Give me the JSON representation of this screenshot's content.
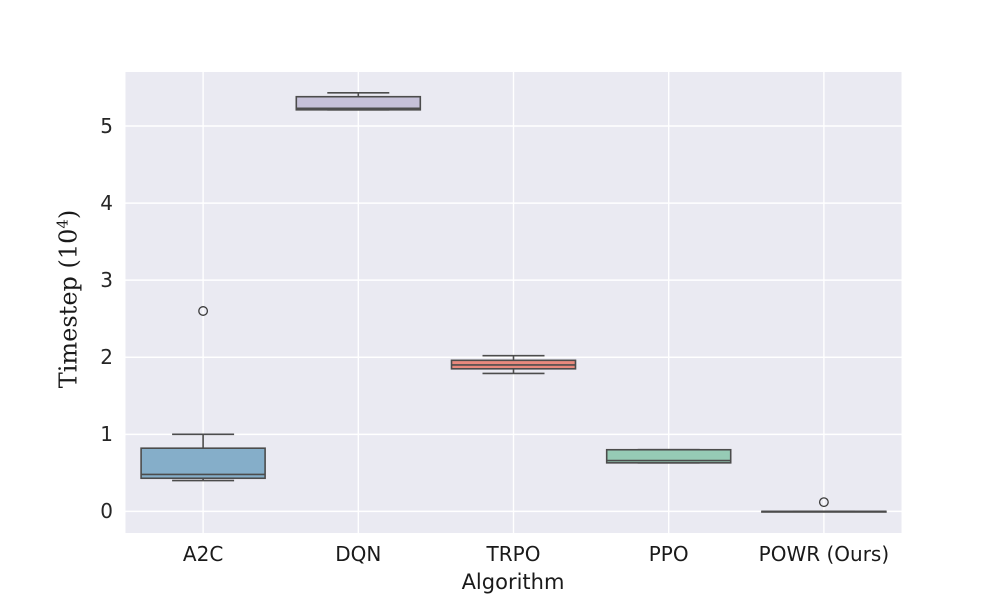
{
  "figure": {
    "background": "#ffffff",
    "plot_bg": "#eaeaf2",
    "grid_color": "#ffffff",
    "box_edge_color": "#4c4c4c",
    "flier_edge_color": "#3a3a3a",
    "tick_color": "#262626"
  },
  "chart_data": {
    "type": "box",
    "title": "",
    "xlabel": "Algorithm",
    "ylabel": "Timestep (10⁴)",
    "ylabel_parts": {
      "prefix": "Timestep (10",
      "exponent": "4",
      "suffix": ")"
    },
    "categories": [
      "A2C",
      "DQN",
      "TRPO",
      "PPO",
      "POWR (Ours)"
    ],
    "yticks": [
      0,
      1,
      2,
      3,
      4,
      5
    ],
    "ylim": [
      -0.28,
      5.7
    ],
    "grid": true,
    "legend": false,
    "series": [
      {
        "label": "A2C",
        "color": "#85aec9",
        "whislo": 0.4,
        "q1": 0.43,
        "med": 0.48,
        "q3": 0.82,
        "whishi": 1.0,
        "fliers": [
          2.6
        ]
      },
      {
        "label": "DQN",
        "color": "#c5c0d8",
        "whislo": 5.21,
        "q1": 5.21,
        "med": 5.23,
        "q3": 5.38,
        "whishi": 5.43,
        "fliers": []
      },
      {
        "label": "TRPO",
        "color": "#e8897d",
        "whislo": 1.79,
        "q1": 1.85,
        "med": 1.9,
        "q3": 1.96,
        "whishi": 2.02,
        "fliers": []
      },
      {
        "label": "PPO",
        "color": "#96cbb5",
        "whislo": 0.63,
        "q1": 0.63,
        "med": 0.66,
        "q3": 0.8,
        "whishi": 0.8,
        "fliers": []
      },
      {
        "label": "POWR (Ours)",
        "color": "#eaeaf2",
        "whislo": 0.0,
        "q1": 0.0,
        "med": 0.0,
        "q3": 0.0,
        "whishi": 0.0,
        "fliers": [
          0.12
        ]
      }
    ]
  }
}
